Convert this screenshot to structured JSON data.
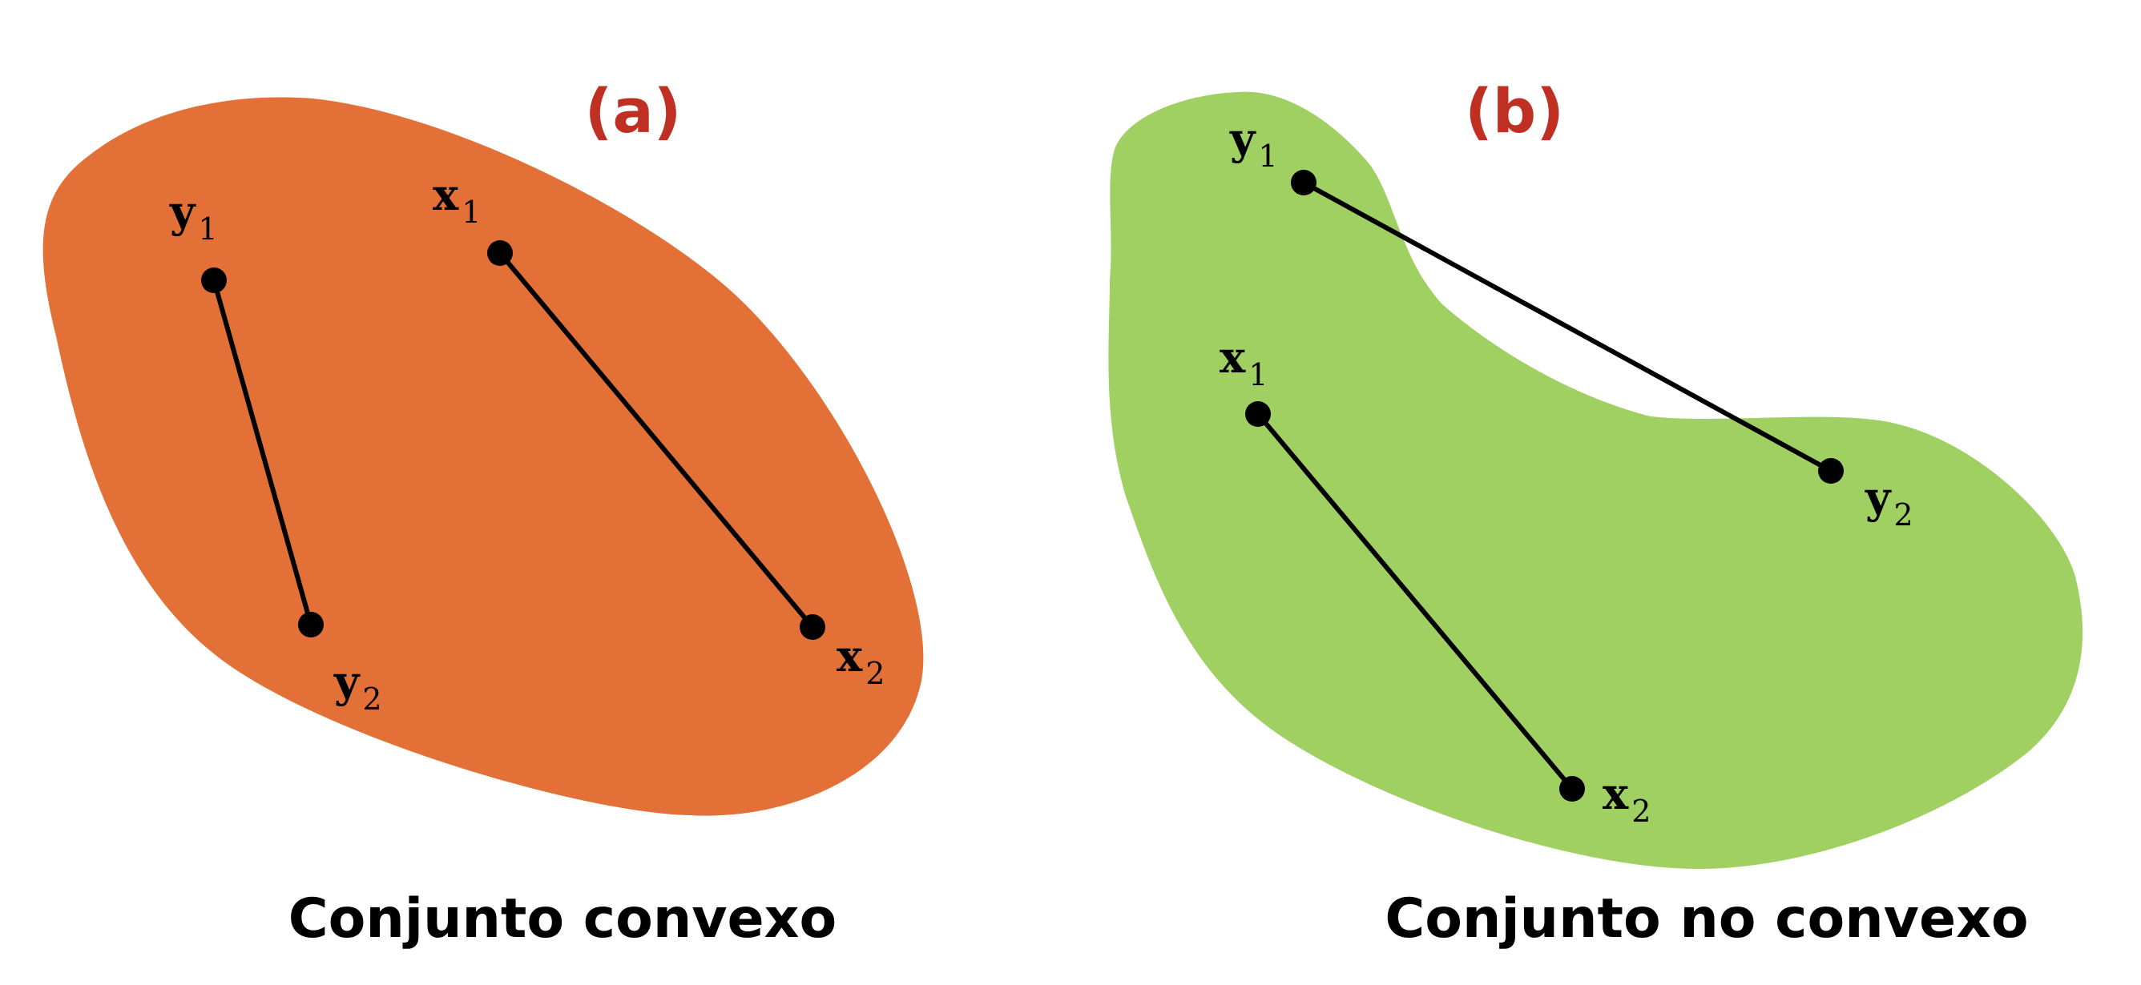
{
  "colors": {
    "convex_fill": "#E27037",
    "nonconvex_fill": "#A0CF62",
    "panel_tag": "#BF2F22",
    "ink": "#000000"
  },
  "panel_a": {
    "tag": "(a)",
    "caption": "Conjunto convexo",
    "points": {
      "y1": {
        "base": "y",
        "sub": "1"
      },
      "y2": {
        "base": "y",
        "sub": "2"
      },
      "x1": {
        "base": "x",
        "sub": "1"
      },
      "x2": {
        "base": "x",
        "sub": "2"
      }
    }
  },
  "panel_b": {
    "tag": "(b)",
    "caption": "Conjunto no convexo",
    "points": {
      "y1": {
        "base": "y",
        "sub": "1"
      },
      "y2": {
        "base": "y",
        "sub": "2"
      },
      "x1": {
        "base": "x",
        "sub": "1"
      },
      "x2": {
        "base": "x",
        "sub": "2"
      }
    }
  }
}
